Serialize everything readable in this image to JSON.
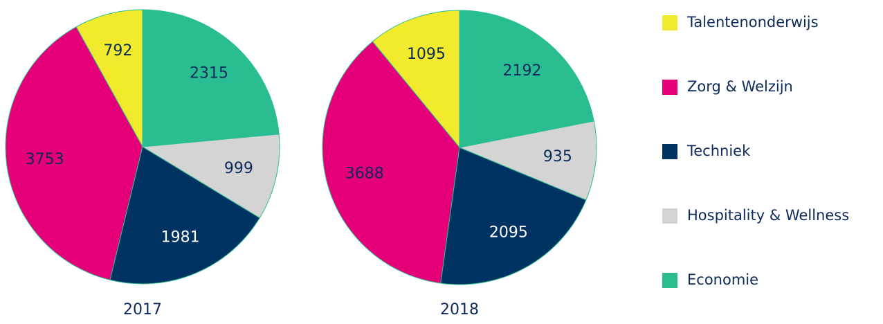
{
  "chart_data": {
    "type": "pie",
    "categories": [
      "Talentenonderwijs",
      "Zorg & Welzijn",
      "Techniek",
      "Hospitality & Wellness",
      "Economie"
    ],
    "colors": [
      "#f2ea2c",
      "#e5007a",
      "#003262",
      "#d4d4d4",
      "#2bbd92"
    ],
    "series": [
      {
        "name": "2017",
        "values": [
          792,
          3753,
          1981,
          999,
          2315
        ]
      },
      {
        "name": "2018",
        "values": [
          1095,
          3688,
          2095,
          935,
          2192
        ]
      }
    ]
  }
}
